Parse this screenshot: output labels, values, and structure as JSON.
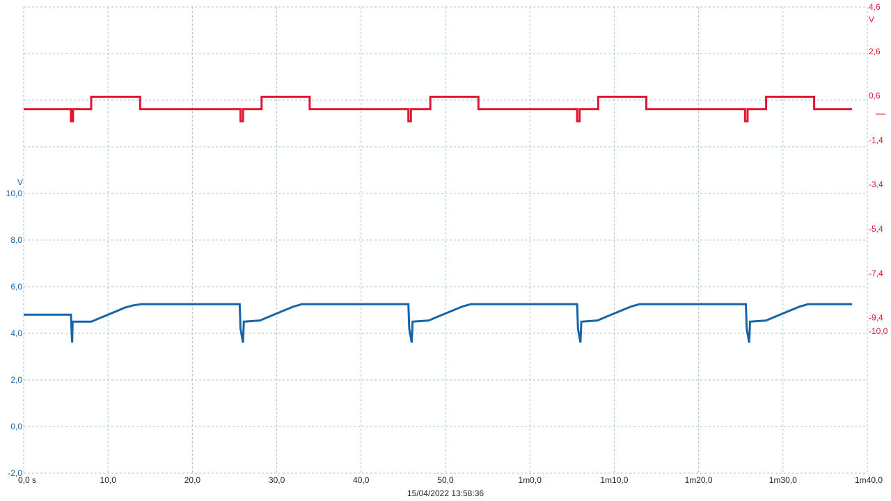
{
  "chart_data": {
    "type": "line",
    "timestamp": "15/04/2022 13:58:36",
    "colors": {
      "ch_blue": "#1565a8",
      "ch_red": "#e0152f",
      "grid": "#9cc7d6"
    },
    "x_axis": {
      "ticks": [
        {
          "v": 0,
          "label": "0,0 s"
        },
        {
          "v": 10,
          "label": "10,0"
        },
        {
          "v": 20,
          "label": "20,0"
        },
        {
          "v": 30,
          "label": "30,0"
        },
        {
          "v": 40,
          "label": "40,0"
        },
        {
          "v": 50,
          "label": "50,0"
        },
        {
          "v": 60,
          "label": "1m0,0"
        },
        {
          "v": 70,
          "label": "1m10,0"
        },
        {
          "v": 80,
          "label": "1m20,0"
        },
        {
          "v": 90,
          "label": "1m30,0"
        },
        {
          "v": 100,
          "label": "1m40,0"
        }
      ],
      "range": [
        0,
        100
      ]
    },
    "left_axis": {
      "unit": "V",
      "range": [
        -2.0,
        18.0
      ],
      "ticks": [
        {
          "v": 10,
          "label": "10,0"
        },
        {
          "v": 8,
          "label": "8,0"
        },
        {
          "v": 6,
          "label": "6,0"
        },
        {
          "v": 4,
          "label": "4,0"
        },
        {
          "v": 2,
          "label": "2,0"
        },
        {
          "v": 0,
          "label": "0,0"
        },
        {
          "v": -2,
          "label": "-2,0"
        }
      ]
    },
    "right_axis": {
      "unit": "V",
      "range": [
        -16.4,
        4.6
      ],
      "ticks": [
        {
          "v": 4.6,
          "label": "4,6"
        },
        {
          "v": 2.6,
          "label": "2,6"
        },
        {
          "v": 0.6,
          "label": "0,6"
        },
        {
          "v": -1.4,
          "label": "-1,4"
        },
        {
          "v": -3.4,
          "label": "-3,4"
        },
        {
          "v": -5.4,
          "label": "-5,4"
        },
        {
          "v": -7.4,
          "label": "-7,4"
        },
        {
          "v": -9.4,
          "label": "-9,4"
        },
        {
          "v": -10.0,
          "label": "-10,0"
        }
      ],
      "zero_marker": 0
    },
    "series": [
      {
        "axis": "left",
        "color": "#1565a8",
        "points": [
          [
            0,
            4.8
          ],
          [
            5.6,
            4.8
          ],
          [
            5.7,
            3.9
          ],
          [
            5.75,
            3.6
          ],
          [
            5.8,
            4.5
          ],
          [
            8,
            4.5
          ],
          [
            9,
            4.65
          ],
          [
            10,
            4.8
          ],
          [
            11,
            4.95
          ],
          [
            12,
            5.1
          ],
          [
            13,
            5.2
          ],
          [
            14,
            5.25
          ],
          [
            25.6,
            5.25
          ],
          [
            25.7,
            4.2
          ],
          [
            26,
            3.6
          ],
          [
            26.1,
            4.5
          ],
          [
            28,
            4.55
          ],
          [
            29,
            4.7
          ],
          [
            30,
            4.85
          ],
          [
            31,
            5.0
          ],
          [
            32,
            5.15
          ],
          [
            33,
            5.25
          ],
          [
            45.6,
            5.25
          ],
          [
            45.7,
            4.2
          ],
          [
            46,
            3.6
          ],
          [
            46.1,
            4.5
          ],
          [
            48,
            4.55
          ],
          [
            49,
            4.7
          ],
          [
            50,
            4.85
          ],
          [
            51,
            5.0
          ],
          [
            52,
            5.15
          ],
          [
            53,
            5.25
          ],
          [
            65.6,
            5.25
          ],
          [
            65.7,
            4.2
          ],
          [
            66,
            3.6
          ],
          [
            66.1,
            4.5
          ],
          [
            68,
            4.55
          ],
          [
            69,
            4.7
          ],
          [
            70,
            4.85
          ],
          [
            71,
            5.0
          ],
          [
            72,
            5.15
          ],
          [
            73,
            5.25
          ],
          [
            85.6,
            5.25
          ],
          [
            85.7,
            4.2
          ],
          [
            86,
            3.6
          ],
          [
            86.1,
            4.5
          ],
          [
            88,
            4.55
          ],
          [
            89,
            4.7
          ],
          [
            90,
            4.85
          ],
          [
            91,
            5.0
          ],
          [
            92,
            5.15
          ],
          [
            93,
            5.25
          ],
          [
            98.2,
            5.25
          ]
        ]
      },
      {
        "axis": "right",
        "color": "#e0152f",
        "points": [
          [
            0,
            0.0
          ],
          [
            5.6,
            0.0
          ],
          [
            5.6,
            -0.55
          ],
          [
            5.85,
            -0.55
          ],
          [
            5.85,
            0.0
          ],
          [
            8.0,
            0.0
          ],
          [
            8.0,
            0.55
          ],
          [
            13.8,
            0.55
          ],
          [
            13.8,
            0.0
          ],
          [
            25.7,
            0.0
          ],
          [
            25.7,
            -0.55
          ],
          [
            26.0,
            -0.55
          ],
          [
            26.0,
            0.0
          ],
          [
            28.2,
            0.0
          ],
          [
            28.2,
            0.55
          ],
          [
            33.9,
            0.55
          ],
          [
            33.9,
            0.0
          ],
          [
            45.6,
            0.0
          ],
          [
            45.6,
            -0.55
          ],
          [
            45.9,
            -0.55
          ],
          [
            45.9,
            0.0
          ],
          [
            48.2,
            0.0
          ],
          [
            48.2,
            0.55
          ],
          [
            53.9,
            0.55
          ],
          [
            53.9,
            0.0
          ],
          [
            65.6,
            0.0
          ],
          [
            65.6,
            -0.55
          ],
          [
            65.9,
            -0.55
          ],
          [
            65.9,
            0.0
          ],
          [
            68.1,
            0.0
          ],
          [
            68.1,
            0.55
          ],
          [
            73.8,
            0.55
          ],
          [
            73.8,
            0.0
          ],
          [
            85.5,
            0.0
          ],
          [
            85.5,
            -0.55
          ],
          [
            85.8,
            -0.55
          ],
          [
            85.8,
            0.0
          ],
          [
            88.0,
            0.0
          ],
          [
            88.0,
            0.55
          ],
          [
            93.7,
            0.55
          ],
          [
            93.7,
            0.0
          ],
          [
            98.2,
            0.0
          ]
        ]
      }
    ]
  }
}
